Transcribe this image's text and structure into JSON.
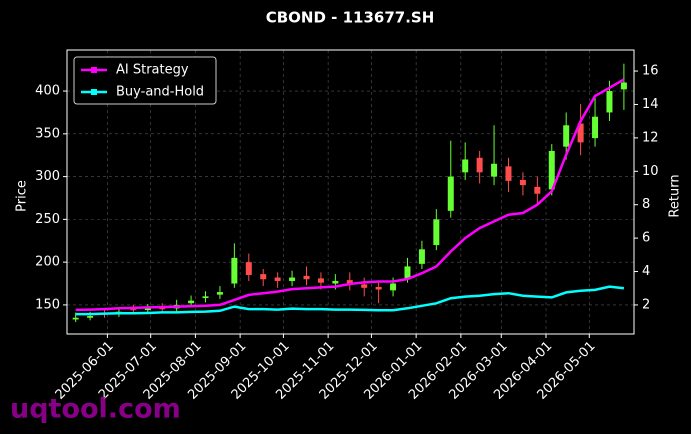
{
  "chart_data": {
    "type": "candlestick",
    "title": "CBOND - 113677.SH",
    "ylabel": "Price",
    "y2label": "Return",
    "watermark": "uqtool.com",
    "x": [
      "2025-05-10",
      "2025-05-20",
      "2025-05-30",
      "2025-06-09",
      "2025-06-19",
      "2025-06-29",
      "2025-07-09",
      "2025-07-19",
      "2025-07-29",
      "2025-08-08",
      "2025-08-18",
      "2025-08-28",
      "2025-09-07",
      "2025-09-17",
      "2025-09-27",
      "2025-10-07",
      "2025-10-17",
      "2025-10-27",
      "2025-11-06",
      "2025-11-16",
      "2025-11-26",
      "2025-12-06",
      "2025-12-16",
      "2025-12-26",
      "2026-01-05",
      "2026-01-15",
      "2026-01-25",
      "2026-02-04",
      "2026-02-14",
      "2026-02-24",
      "2026-03-06",
      "2026-03-16",
      "2026-03-26",
      "2026-04-05",
      "2026-04-15",
      "2026-04-25",
      "2026-05-05",
      "2026-05-15",
      "2026-05-25"
    ],
    "open": [
      133,
      135,
      141,
      140,
      145,
      144,
      147,
      146,
      152,
      158,
      162,
      175,
      200,
      186,
      182,
      178,
      184,
      181,
      175,
      179,
      174,
      171,
      167,
      180,
      198,
      220,
      260,
      305,
      322,
      300,
      312,
      296,
      288,
      285,
      335,
      362,
      345,
      375,
      402
    ],
    "high": [
      141,
      142,
      146,
      147,
      150,
      151,
      152,
      156,
      161,
      166,
      172,
      222,
      210,
      192,
      188,
      190,
      195,
      188,
      186,
      188,
      182,
      178,
      182,
      205,
      225,
      262,
      342,
      340,
      330,
      360,
      322,
      305,
      300,
      338,
      375,
      385,
      392,
      412,
      432
    ],
    "low": [
      130,
      132,
      135,
      136,
      139,
      140,
      140,
      142,
      148,
      153,
      157,
      170,
      178,
      172,
      170,
      172,
      173,
      168,
      168,
      167,
      160,
      152,
      160,
      176,
      192,
      214,
      252,
      296,
      292,
      290,
      282,
      278,
      266,
      278,
      320,
      325,
      335,
      365,
      378
    ],
    "close": [
      135,
      137,
      140,
      142,
      144,
      146,
      145,
      150,
      155,
      160,
      165,
      205,
      185,
      180,
      178,
      182,
      180,
      176,
      178,
      175,
      170,
      168,
      175,
      195,
      215,
      250,
      300,
      320,
      305,
      315,
      295,
      290,
      280,
      330,
      360,
      340,
      370,
      400,
      410
    ],
    "up_color": "#66ff33",
    "down_color": "#ff4d4d",
    "series": [
      {
        "name": "AI Strategy",
        "color": "#ff00ff",
        "axis": "y2",
        "values": [
          1.7,
          1.72,
          1.75,
          1.8,
          1.82,
          1.85,
          1.87,
          1.9,
          1.92,
          1.95,
          2.0,
          2.3,
          2.6,
          2.7,
          2.8,
          2.95,
          3.0,
          3.05,
          3.1,
          3.25,
          3.35,
          3.4,
          3.4,
          3.55,
          3.9,
          4.3,
          5.2,
          6.0,
          6.6,
          7.0,
          7.4,
          7.5,
          8.0,
          8.8,
          11.0,
          13.0,
          14.5,
          15.0,
          15.5
        ]
      },
      {
        "name": "Buy-and-Hold",
        "color": "#00ffff",
        "axis": "y2",
        "values": [
          1.45,
          1.45,
          1.48,
          1.5,
          1.5,
          1.52,
          1.55,
          1.55,
          1.58,
          1.6,
          1.65,
          1.9,
          1.75,
          1.75,
          1.72,
          1.78,
          1.75,
          1.75,
          1.72,
          1.72,
          1.7,
          1.68,
          1.68,
          1.8,
          1.95,
          2.1,
          2.4,
          2.5,
          2.55,
          2.65,
          2.7,
          2.55,
          2.5,
          2.45,
          2.75,
          2.85,
          2.9,
          3.1,
          3.0
        ]
      }
    ],
    "xlim": [
      "2025-05-04",
      "2026-06-01"
    ],
    "xticks": [
      "2025-06-01",
      "2025-07-01",
      "2025-08-01",
      "2025-09-01",
      "2025-10-01",
      "2025-11-01",
      "2025-12-01",
      "2026-01-01",
      "2026-02-01",
      "2026-03-01",
      "2026-04-01",
      "2026-05-01"
    ],
    "ylim": [
      116,
      448
    ],
    "yticks": [
      150,
      200,
      250,
      300,
      350,
      400
    ],
    "y2lim": [
      0.26,
      17.26
    ],
    "y2ticks": [
      2,
      4,
      6,
      8,
      10,
      12,
      14,
      16
    ],
    "grid": true,
    "legend": "upper left"
  }
}
